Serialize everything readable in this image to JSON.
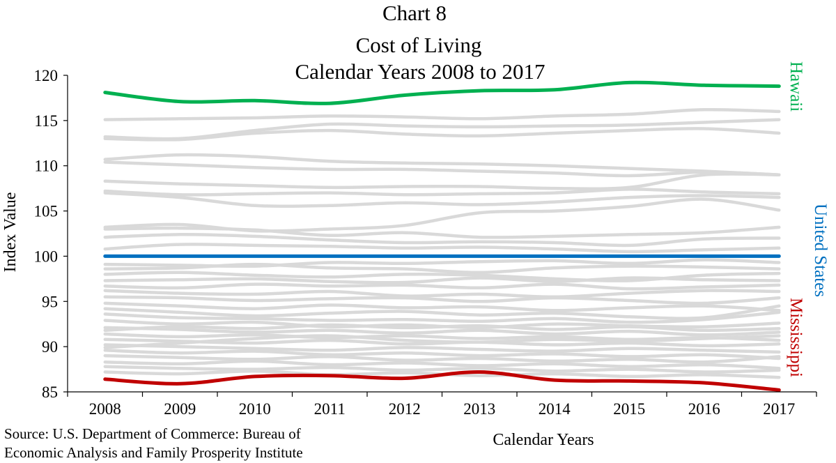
{
  "chart_data": {
    "type": "line",
    "title": [
      "Chart 8",
      "Cost of Living",
      "Calendar Years 2008 to 2017"
    ],
    "xlabel": "Calendar Years",
    "ylabel": "Index Value",
    "x": [
      "2008",
      "2009",
      "2010",
      "2011",
      "2012",
      "2013",
      "2014",
      "2015",
      "2016",
      "2017"
    ],
    "ylim": [
      85,
      120
    ],
    "yticks": [
      85,
      90,
      95,
      100,
      105,
      110,
      115,
      120
    ],
    "grid": false,
    "source": [
      "Source: U.S. Department of Commerce: Bureau of",
      "Economic Analysis and Family Prosperity Institute"
    ],
    "colors": {
      "background_series": "#d9d9d9",
      "hawaii": "#00b050",
      "united_states": "#0070c0",
      "mississippi": "#c00000"
    },
    "highlight_series": [
      {
        "name": "Hawaii",
        "color": "#00b050",
        "values": [
          118.1,
          117.1,
          117.2,
          116.9,
          117.8,
          118.3,
          118.4,
          119.2,
          118.9,
          118.8
        ]
      },
      {
        "name": "United States",
        "color": "#0070c0",
        "values": [
          100.0,
          100.0,
          100.0,
          100.0,
          100.0,
          100.0,
          100.0,
          100.0,
          100.0,
          100.0
        ]
      },
      {
        "name": "Mississippi",
        "color": "#c00000",
        "values": [
          86.4,
          85.9,
          86.7,
          86.8,
          86.5,
          87.2,
          86.3,
          86.2,
          86.0,
          85.2
        ]
      }
    ],
    "background_series": [
      {
        "values": [
          115.1,
          115.2,
          115.3,
          115.5,
          115.4,
          115.2,
          115.5,
          115.7,
          116.2,
          116.0
        ]
      },
      {
        "values": [
          113.2,
          113.0,
          113.9,
          114.6,
          114.4,
          114.3,
          114.4,
          114.5,
          114.8,
          115.1
        ]
      },
      {
        "values": [
          113.0,
          112.9,
          113.6,
          113.9,
          113.5,
          113.3,
          113.6,
          113.9,
          114.1,
          113.6
        ]
      },
      {
        "values": [
          110.7,
          111.2,
          111.0,
          110.5,
          110.3,
          110.2,
          110.0,
          109.7,
          109.4,
          109.0
        ]
      },
      {
        "values": [
          110.4,
          110.1,
          109.8,
          109.6,
          109.6,
          109.4,
          109.2,
          108.9,
          109.3,
          109.0
        ]
      },
      {
        "values": [
          108.3,
          108.0,
          107.8,
          107.6,
          107.7,
          107.7,
          107.5,
          107.6,
          109.0,
          109.0
        ]
      },
      {
        "values": [
          107.2,
          106.8,
          106.9,
          107.0,
          106.8,
          106.9,
          107.0,
          107.4,
          107.1,
          106.9
        ]
      },
      {
        "values": [
          107.0,
          106.5,
          105.6,
          105.6,
          105.9,
          105.7,
          106.0,
          106.5,
          106.7,
          106.5
        ]
      },
      {
        "values": [
          103.2,
          103.5,
          102.8,
          103.0,
          103.4,
          104.8,
          105.0,
          105.5,
          106.3,
          105.1
        ]
      },
      {
        "values": [
          103.0,
          103.1,
          102.9,
          102.3,
          102.6,
          102.1,
          102.2,
          102.4,
          102.6,
          103.2
        ]
      },
      {
        "values": [
          102.1,
          102.4,
          102.2,
          101.8,
          101.5,
          101.6,
          101.5,
          101.2,
          101.9,
          102.0
        ]
      },
      {
        "values": [
          100.8,
          101.3,
          101.2,
          101.1,
          100.9,
          101.0,
          100.8,
          100.5,
          100.7,
          100.9
        ]
      },
      {
        "values": [
          99.1,
          99.0,
          98.9,
          99.3,
          99.2,
          99.4,
          99.5,
          99.2,
          99.6,
          99.3
        ]
      },
      {
        "values": [
          98.6,
          98.7,
          99.1,
          98.7,
          98.6,
          98.2,
          98.7,
          98.9,
          98.8,
          98.6
        ]
      },
      {
        "values": [
          98.0,
          98.2,
          97.9,
          97.7,
          98.0,
          97.9,
          97.5,
          97.3,
          97.9,
          98.1
        ]
      },
      {
        "values": [
          97.3,
          97.4,
          97.5,
          97.2,
          97.1,
          97.6,
          97.2,
          97.6,
          97.4,
          97.3
        ]
      },
      {
        "values": [
          96.7,
          96.5,
          96.9,
          96.7,
          96.8,
          96.5,
          96.9,
          96.4,
          96.6,
          96.8
        ]
      },
      {
        "values": [
          96.2,
          95.9,
          95.8,
          96.1,
          95.6,
          95.8,
          95.5,
          95.9,
          96.2,
          96.1
        ]
      },
      {
        "values": [
          95.5,
          95.4,
          95.1,
          95.3,
          95.4,
          95.0,
          95.4,
          95.1,
          94.8,
          95.4
        ]
      },
      {
        "values": [
          94.8,
          94.5,
          94.2,
          94.6,
          94.3,
          94.4,
          94.0,
          94.3,
          94.5,
          94.0
        ]
      },
      {
        "values": [
          94.2,
          93.8,
          93.4,
          93.7,
          93.9,
          93.5,
          93.7,
          93.3,
          93.2,
          94.5
        ]
      },
      {
        "values": [
          93.6,
          93.2,
          93.1,
          92.9,
          93.0,
          92.8,
          93.1,
          92.7,
          93.0,
          93.8
        ]
      },
      {
        "values": [
          92.9,
          92.5,
          92.7,
          92.2,
          92.4,
          92.1,
          92.5,
          92.3,
          92.2,
          92.6
        ]
      },
      {
        "values": [
          92.1,
          91.9,
          91.6,
          91.8,
          91.5,
          91.8,
          91.4,
          91.7,
          91.3,
          91.6
        ]
      },
      {
        "values": [
          91.4,
          91.1,
          91.3,
          91.0,
          91.2,
          90.9,
          91.1,
          90.8,
          91.0,
          90.7
        ]
      },
      {
        "values": [
          90.8,
          90.6,
          90.4,
          90.7,
          90.3,
          90.5,
          90.2,
          90.4,
          90.1,
          90.3
        ]
      },
      {
        "values": [
          90.2,
          90.0,
          89.8,
          89.6,
          89.9,
          89.7,
          89.5,
          89.8,
          89.6,
          89.4
        ]
      },
      {
        "values": [
          89.6,
          89.3,
          89.5,
          89.1,
          89.3,
          89.0,
          89.2,
          88.9,
          89.1,
          88.7
        ]
      },
      {
        "values": [
          89.0,
          88.8,
          88.6,
          88.9,
          88.5,
          88.7,
          88.4,
          88.6,
          88.3,
          88.9
        ]
      },
      {
        "values": [
          88.3,
          88.1,
          88.4,
          88.0,
          88.2,
          87.9,
          88.1,
          87.8,
          88.0,
          87.6
        ]
      },
      {
        "values": [
          87.8,
          87.6,
          87.5,
          87.7,
          87.4,
          87.6,
          87.3,
          87.5,
          87.2,
          87.4
        ]
      },
      {
        "values": [
          87.2,
          87.0,
          87.3,
          86.9,
          87.1,
          86.8,
          87.0,
          86.7,
          86.9,
          86.6
        ]
      },
      {
        "values": [
          91.8,
          92.2,
          92.0,
          92.4,
          92.1,
          92.3,
          91.9,
          92.2,
          91.8,
          92.0
        ]
      },
      {
        "values": [
          89.9,
          90.4,
          90.9,
          91.2,
          90.7,
          90.5,
          90.8,
          90.6,
          90.9,
          91.2
        ]
      }
    ]
  }
}
